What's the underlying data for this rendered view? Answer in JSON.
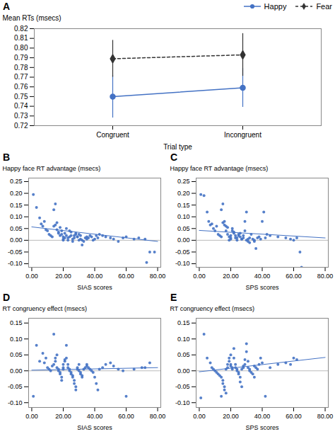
{
  "chart_data": [
    {
      "type": "line",
      "title": "A",
      "categories": [
        "Congruent",
        "Incongruent"
      ],
      "xlabel": "Trial type",
      "ylabel": "Mean RTs (msecs)",
      "ylim": [
        0.72,
        0.82
      ],
      "yticks": [
        0.72,
        0.73,
        0.74,
        0.75,
        0.76,
        0.77,
        0.78,
        0.79,
        {
          "value": 0.8,
          "label": "0.80"
        },
        0.81,
        0.82
      ],
      "legend": "upper right",
      "series": [
        {
          "name": "Happy",
          "color": "#4472C4",
          "marker": "circle",
          "line_style": "solid",
          "values": [
            0.75,
            0.759
          ],
          "errors": [
            0.022,
            0.02
          ]
        },
        {
          "name": "Fear",
          "color": "#333333",
          "marker": "diamond",
          "line_style": "dashed",
          "values": [
            0.789,
            0.793
          ],
          "errors": [
            0.019,
            0.022
          ]
        }
      ]
    },
    {
      "type": "scatter",
      "title": "B",
      "xlabel": "SIAS scores",
      "ylabel": "Happy face RT advantage (msecs)",
      "xlim": [
        -2,
        82
      ],
      "ylim": [
        -0.115,
        0.265
      ],
      "xticks": [
        {
          "value": 0,
          "label": "0.00"
        },
        {
          "value": 20,
          "label": "20.00"
        },
        {
          "value": 40,
          "label": "40.00"
        },
        {
          "value": 60,
          "label": "60.00"
        },
        {
          "value": 80,
          "label": "80.00"
        }
      ],
      "yticks": [
        {
          "value": -0.1,
          "label": "-0.10"
        },
        -0.05,
        {
          "value": 0,
          "label": "0.00"
        },
        0.05,
        {
          "value": 0.1,
          "label": "0.10"
        },
        0.15,
        {
          "value": 0.2,
          "label": "0.20"
        },
        0.25
      ],
      "color": "#4472C4",
      "x": [
        1,
        3,
        5,
        6,
        7,
        8,
        9,
        10,
        11,
        12,
        13,
        14,
        14,
        15,
        15,
        16,
        16,
        17,
        17,
        18,
        18,
        19,
        19,
        20,
        20,
        20,
        21,
        21,
        22,
        22,
        23,
        23,
        24,
        24,
        25,
        25,
        26,
        26,
        27,
        27,
        28,
        28,
        29,
        29,
        30,
        30,
        31,
        31,
        32,
        32,
        33,
        34,
        35,
        35,
        36,
        37,
        38,
        39,
        40,
        41,
        42,
        43,
        45,
        47,
        50,
        52,
        55,
        58,
        60,
        65,
        68,
        72,
        75,
        78,
        73
      ],
      "values": [
        0.195,
        0.14,
        0.095,
        0.07,
        0.06,
        0.08,
        0.045,
        0.04,
        0.025,
        0.02,
        0.015,
        0.06,
        0.13,
        0.065,
        0.155,
        0.075,
        0.045,
        0.035,
        0.03,
        0.02,
        0.055,
        0.04,
        0.025,
        0.015,
        0.005,
        0.0,
        0.01,
        0.03,
        0.05,
        0.02,
        0.01,
        0.0,
        0.015,
        0.04,
        0.02,
        0.035,
        0.005,
        -0.005,
        0.01,
        0.02,
        0.03,
        0.025,
        0.015,
        0.015,
        0.025,
        0.0,
        0.005,
        0.02,
        0.0,
        -0.02,
        -0.005,
        0.01,
        0.015,
        0.005,
        0.01,
        0.02,
        0.015,
        0.0,
        0.005,
        0.02,
        0.01,
        0.025,
        0.02,
        0.015,
        0.01,
        0.005,
        -0.005,
        0.01,
        0.015,
        0.005,
        0.01,
        0.005,
        -0.05,
        -0.05,
        -0.095
      ],
      "trend": {
        "x": [
          0,
          80
        ],
        "values": [
          0.057,
          -0.005
        ]
      },
      "zero_line": 0
    },
    {
      "type": "scatter",
      "title": "C",
      "xlabel": "SPS scores",
      "ylabel": "Happy face RT advantage (msecs)",
      "xlim": [
        -2,
        82
      ],
      "ylim": [
        -0.115,
        0.265
      ],
      "xticks": [
        {
          "value": 0,
          "label": "0.00"
        },
        {
          "value": 20,
          "label": "20.00"
        },
        {
          "value": 40,
          "label": "40.00"
        },
        {
          "value": 60,
          "label": "60.00"
        },
        {
          "value": 80,
          "label": "80.00"
        }
      ],
      "yticks": [
        {
          "value": -0.1,
          "label": "-0.10"
        },
        -0.05,
        {
          "value": 0,
          "label": "0.00"
        },
        0.05,
        {
          "value": 0.1,
          "label": "0.10"
        },
        0.15,
        {
          "value": 0.2,
          "label": "0.20"
        },
        0.25
      ],
      "color": "#4472C4",
      "x": [
        1,
        3,
        5,
        6,
        7,
        8,
        9,
        10,
        11,
        12,
        13,
        14,
        14,
        15,
        15,
        16,
        16,
        17,
        17,
        18,
        18,
        19,
        19,
        20,
        20,
        20,
        21,
        21,
        22,
        22,
        23,
        23,
        24,
        24,
        25,
        25,
        26,
        26,
        27,
        27,
        28,
        28,
        29,
        29,
        30,
        30,
        31,
        31,
        32,
        32,
        33,
        34,
        35,
        35,
        36,
        37,
        38,
        39,
        40,
        41,
        42,
        43,
        45,
        50,
        55,
        58,
        60,
        62,
        64,
        65
      ],
      "values": [
        0.195,
        0.19,
        0.12,
        0.08,
        0.065,
        0.07,
        0.05,
        0.04,
        0.06,
        0.025,
        0.02,
        0.015,
        0.13,
        0.075,
        0.155,
        0.065,
        0.08,
        0.06,
        0.04,
        0.055,
        0.025,
        0.015,
        0.0,
        0.005,
        0.01,
        0.02,
        0.04,
        0.05,
        0.03,
        0.035,
        0.02,
        0.01,
        0.0,
        0.01,
        0.02,
        0.025,
        0.03,
        0.015,
        0.005,
        0.005,
        0.01,
        0.02,
        0.04,
        0.08,
        0.12,
        0.0,
        -0.005,
        0.005,
        -0.01,
        0.01,
        0.025,
        0.005,
        0.0,
        -0.005,
        -0.035,
        0.01,
        0.015,
        0.005,
        0.08,
        0.12,
        0.01,
        0.025,
        0.02,
        0.015,
        0.01,
        0.005,
        0.0,
        0.01,
        -0.05,
        -0.115
      ],
      "trend": {
        "x": [
          0,
          80
        ],
        "values": [
          0.042,
          0.01
        ]
      },
      "zero_line": 0
    },
    {
      "type": "scatter",
      "title": "D",
      "xlabel": "SIAS scores",
      "ylabel": "RT congruency effect (msecs)",
      "xlim": [
        -2,
        82
      ],
      "ylim": [
        -0.115,
        0.165
      ],
      "xticks": [
        {
          "value": 0,
          "label": "0.00"
        },
        {
          "value": 20,
          "label": "20.00"
        },
        {
          "value": 40,
          "label": "40.00"
        },
        {
          "value": 60,
          "label": "60.00"
        },
        {
          "value": 80,
          "label": "80.00"
        }
      ],
      "yticks": [
        {
          "value": -0.1,
          "label": "-0.10"
        },
        -0.05,
        {
          "value": 0,
          "label": "0.00"
        },
        0.05,
        {
          "value": 0.1,
          "label": "0.10"
        },
        0.15
      ],
      "color": "#4472C4",
      "x": [
        1,
        3,
        5,
        7,
        8,
        9,
        10,
        11,
        12,
        13,
        14,
        14,
        15,
        15,
        16,
        16,
        17,
        17,
        18,
        18,
        19,
        19,
        20,
        20,
        20,
        21,
        21,
        22,
        22,
        23,
        23,
        24,
        24,
        25,
        25,
        26,
        26,
        27,
        27,
        28,
        28,
        29,
        29,
        30,
        30,
        31,
        31,
        32,
        32,
        33,
        34,
        35,
        35,
        36,
        37,
        38,
        39,
        40,
        41,
        42,
        43,
        45,
        47,
        50,
        52,
        55,
        58,
        60,
        65,
        70,
        72,
        75
      ],
      "values": [
        -0.08,
        0.08,
        0.03,
        0.055,
        0.025,
        0.04,
        0.01,
        0.005,
        0.0,
        0.015,
        0.02,
        0.115,
        0.03,
        0.04,
        0.05,
        0.01,
        0.005,
        0.0,
        -0.005,
        -0.01,
        -0.02,
        -0.03,
        0.005,
        0.01,
        0.02,
        0.03,
        0.035,
        0.08,
        0.04,
        0.02,
        0.01,
        0.005,
        0.0,
        -0.005,
        -0.01,
        -0.015,
        -0.02,
        -0.03,
        -0.04,
        -0.05,
        -0.06,
        0.005,
        0.01,
        0.02,
        0.0,
        -0.005,
        -0.01,
        -0.015,
        -0.02,
        0.005,
        0.01,
        0.02,
        0.015,
        0.01,
        0.005,
        0.0,
        -0.005,
        -0.02,
        -0.04,
        -0.06,
        0.005,
        0.01,
        0.02,
        0.025,
        0.015,
        0.005,
        0.0,
        -0.08,
        0.005,
        0.01,
        0.01,
        0.025
      ],
      "trend": {
        "x": [
          0,
          80
        ],
        "values": [
          0.002,
          0.01
        ]
      },
      "zero_line": 0
    },
    {
      "type": "scatter",
      "title": "E",
      "xlabel": "SPS scores",
      "ylabel": "RT congruency effect (msecs)",
      "xlim": [
        -2,
        82
      ],
      "ylim": [
        -0.115,
        0.165
      ],
      "xticks": [
        {
          "value": 0,
          "label": "0.00"
        },
        {
          "value": 20,
          "label": "20.00"
        },
        {
          "value": 40,
          "label": "40.00"
        },
        {
          "value": 60,
          "label": "60.00"
        },
        {
          "value": 80,
          "label": "80.00"
        }
      ],
      "yticks": [
        {
          "value": -0.1,
          "label": "-0.10"
        },
        -0.05,
        {
          "value": 0,
          "label": "0.00"
        },
        0.05,
        {
          "value": 0.1,
          "label": "0.10"
        },
        0.15
      ],
      "color": "#4472C4",
      "x": [
        1,
        3,
        5,
        7,
        8,
        9,
        10,
        11,
        12,
        13,
        14,
        14,
        15,
        15,
        16,
        16,
        17,
        17,
        18,
        18,
        19,
        19,
        20,
        20,
        20,
        21,
        21,
        22,
        22,
        23,
        23,
        24,
        24,
        25,
        25,
        26,
        26,
        27,
        27,
        28,
        28,
        29,
        29,
        30,
        30,
        31,
        31,
        32,
        32,
        33,
        34,
        35,
        35,
        36,
        37,
        38,
        39,
        40,
        42,
        45,
        50,
        55,
        58,
        60,
        62
      ],
      "values": [
        -0.085,
        0.115,
        0.04,
        0.025,
        0.01,
        0.005,
        0.0,
        -0.005,
        -0.01,
        -0.015,
        -0.02,
        -0.08,
        -0.03,
        -0.04,
        -0.05,
        -0.06,
        -0.07,
        0.005,
        0.01,
        0.02,
        0.03,
        0.04,
        0.05,
        0.02,
        0.015,
        0.01,
        0.005,
        0.07,
        0.04,
        0.02,
        0.01,
        0.005,
        0.0,
        -0.005,
        -0.01,
        -0.02,
        -0.035,
        -0.05,
        0.005,
        0.01,
        0.015,
        0.02,
        0.035,
        0.06,
        0.085,
        0.03,
        0.01,
        0.005,
        0.0,
        -0.005,
        -0.01,
        -0.02,
        0.015,
        0.01,
        0.005,
        0.02,
        0.04,
        0.025,
        -0.08,
        0.01,
        0.02,
        0.025,
        0.02,
        0.04,
        0.035
      ],
      "trend": {
        "x": [
          0,
          80
        ],
        "values": [
          -0.003,
          0.042
        ]
      },
      "zero_line": 0
    }
  ]
}
